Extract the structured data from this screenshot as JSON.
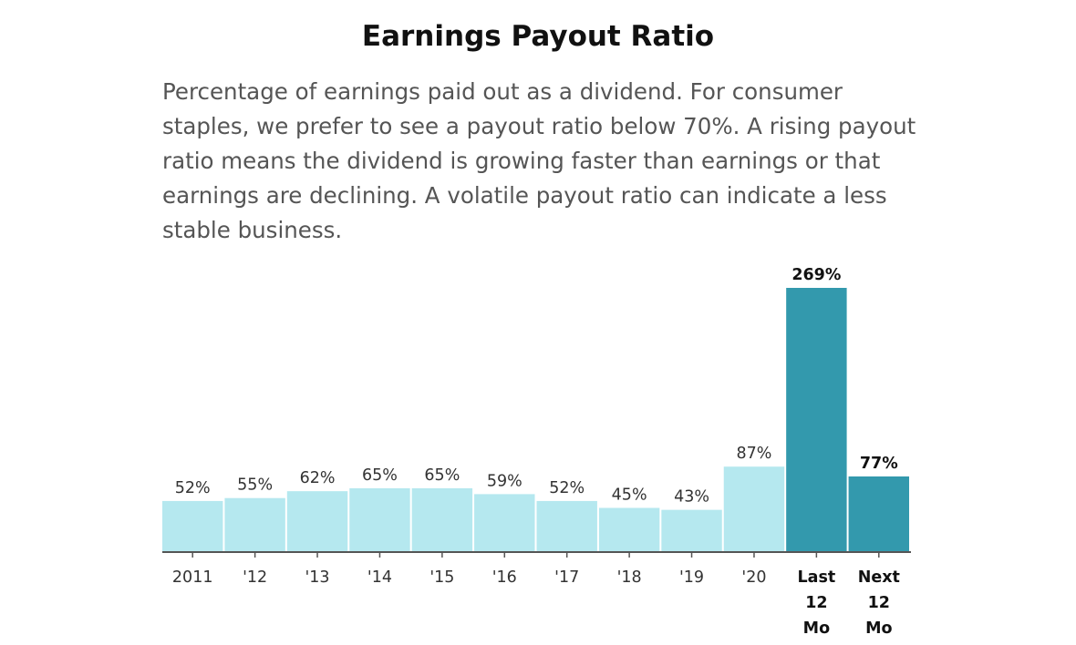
{
  "header": {
    "title": "Earnings Payout Ratio",
    "subtitle": "Percentage of earnings paid out as a dividend. For consumer staples, we prefer to see a payout ratio below 70%. A rising payout ratio means the dividend is growing faster than earnings or that earnings are declining. A volatile payout ratio can indicate a less stable business."
  },
  "chart_data": {
    "type": "bar",
    "title": "Earnings Payout Ratio",
    "subtitle": "Percentage of earnings paid out as a dividend. For consumer staples, we prefer to see a payout ratio below 70%. A rising payout ratio means the dividend is growing faster than earnings or that earnings are declining. A volatile payout ratio can indicate a less stable business.",
    "categories": [
      "2011",
      "'12",
      "'13",
      "'14",
      "'15",
      "'16",
      "'17",
      "'18",
      "'19",
      "'20",
      "Last 12 Mo",
      "Next 12 Mo"
    ],
    "values": [
      52,
      55,
      62,
      65,
      65,
      59,
      52,
      45,
      43,
      87,
      269,
      77
    ],
    "labels": [
      "52%",
      "55%",
      "62%",
      "65%",
      "65%",
      "59%",
      "52%",
      "45%",
      "43%",
      "87%",
      "269%",
      "77%"
    ],
    "highlighted": [
      false,
      false,
      false,
      false,
      false,
      false,
      false,
      false,
      false,
      false,
      true,
      true
    ],
    "unit": "%",
    "ylim": [
      0,
      269
    ],
    "grid": false,
    "legend": "none",
    "colors": {
      "bar": "#b5e8ef",
      "highlight": "#3399ad",
      "axis": "#555555"
    }
  }
}
